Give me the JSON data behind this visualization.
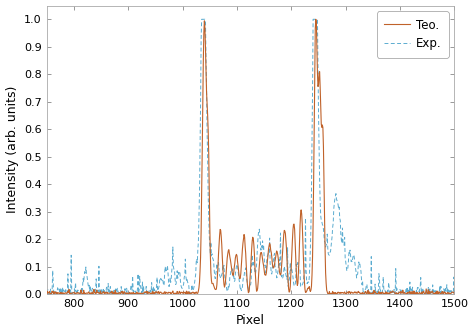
{
  "title": "",
  "xlabel": "Pixel",
  "ylabel": "Intensity (arb. units)",
  "xlim": [
    750,
    1500
  ],
  "ylim": [
    0,
    1.05
  ],
  "xticks": [
    800,
    900,
    1000,
    1100,
    1200,
    1300,
    1400,
    1500
  ],
  "yticks": [
    0.0,
    0.1,
    0.2,
    0.3,
    0.4,
    0.5,
    0.6,
    0.7,
    0.8,
    0.9,
    1.0
  ],
  "teo_color": "#c0622a",
  "exp_color": "#5bacd0",
  "teo_label": "Teo.",
  "exp_label": "Exp.",
  "background_color": "#ffffff",
  "figsize": [
    4.74,
    3.33
  ],
  "dpi": 100
}
